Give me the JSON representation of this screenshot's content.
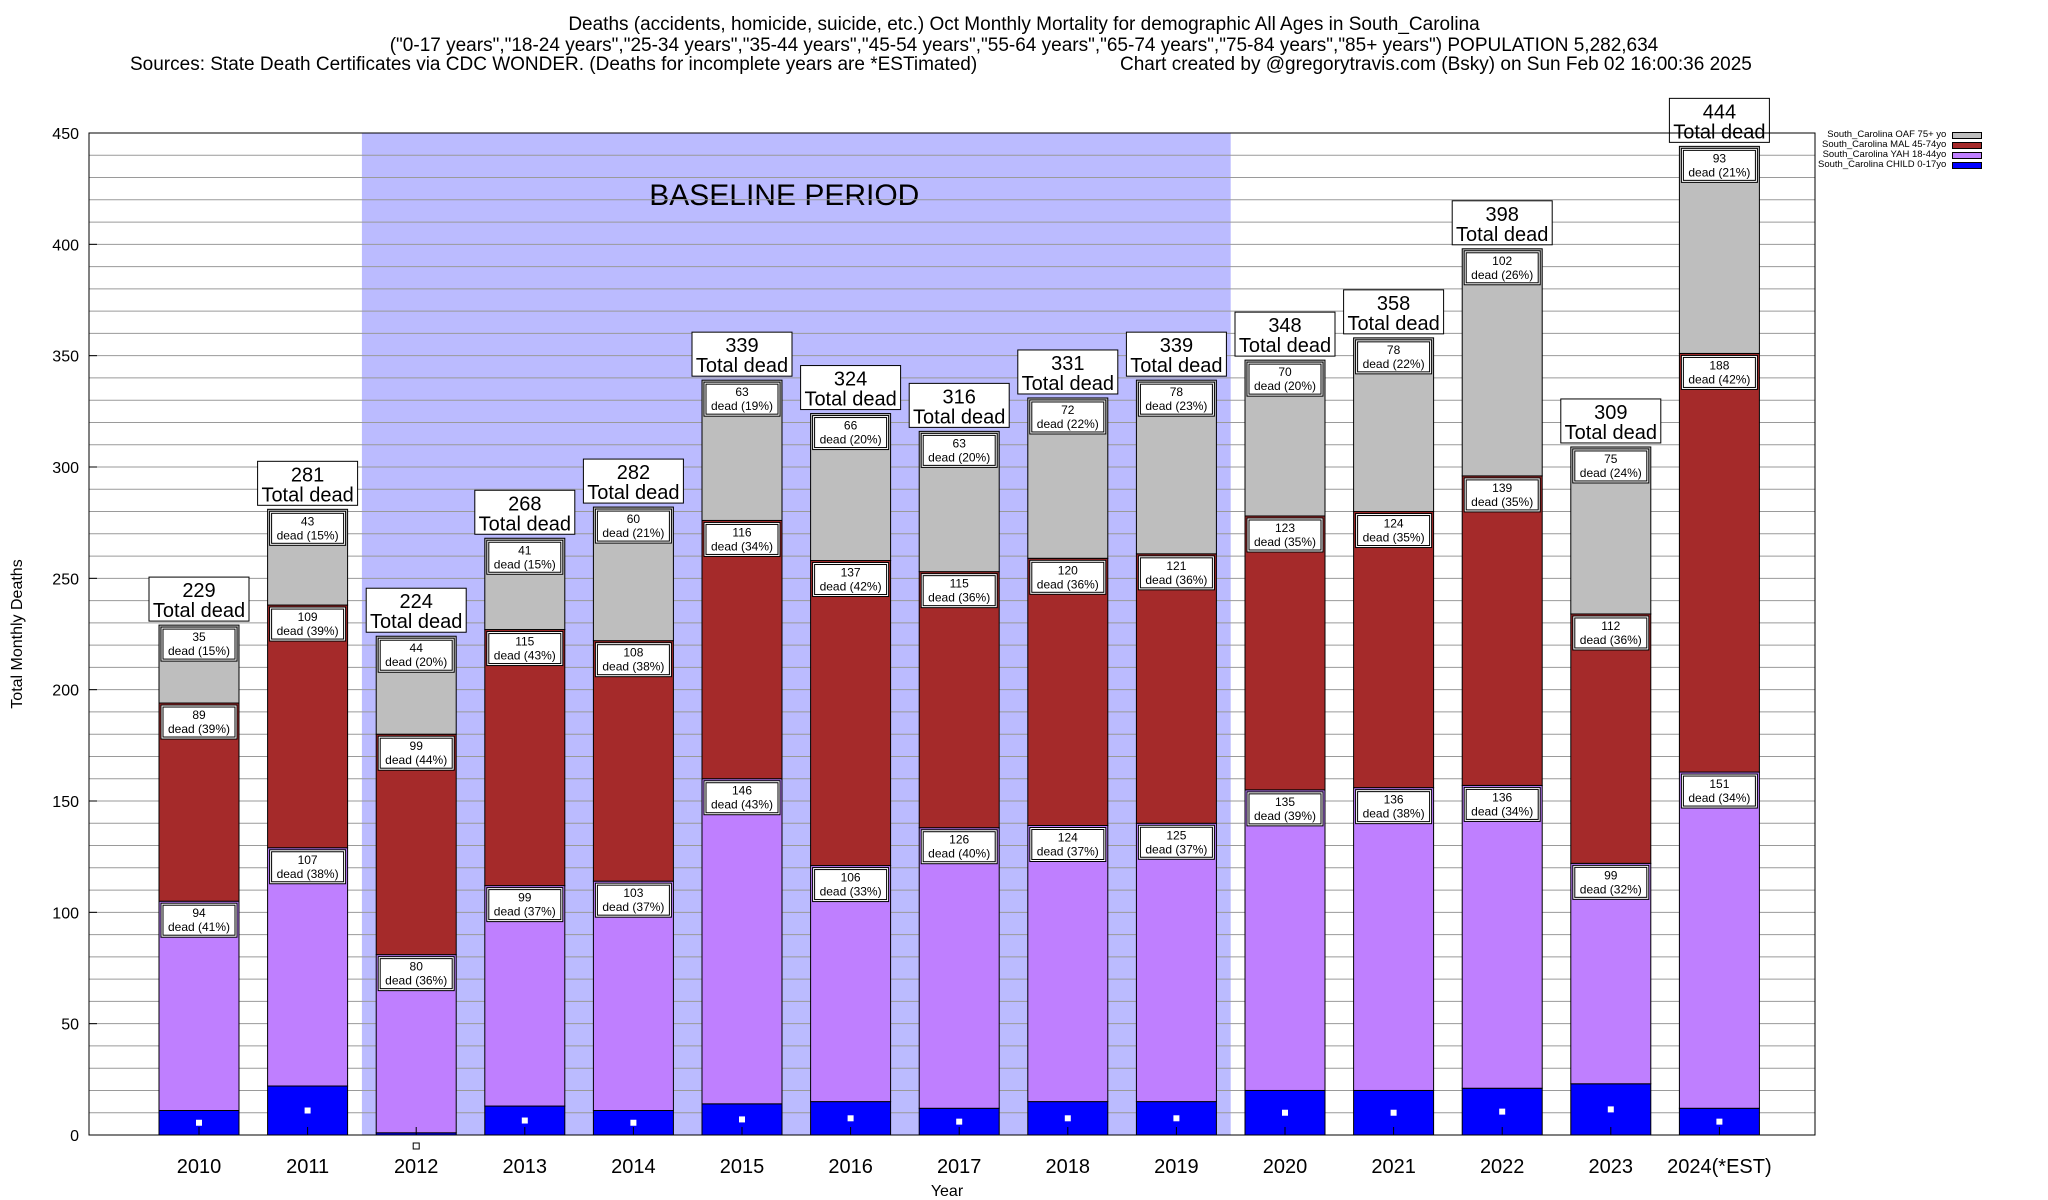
{
  "header": {
    "title_line1": "Deaths (accidents, homicide, suicide, etc.) Oct Monthly Mortality for demographic All Ages in South_Carolina",
    "title_line2": "(\"0-17 years\",\"18-24 years\",\"25-34 years\",\"35-44 years\",\"45-54 years\",\"55-64 years\",\"65-74 years\",\"75-84 years\",\"85+ years\") POPULATION 5,282,634",
    "sources": "Sources: State Death Certificates via CDC WONDER. (Deaths for incomplete years are *ESTimated)",
    "credit": "Chart created by @gregorytravis.com (Bsky) on Sun Feb 02 16:00:36 2025"
  },
  "chart_data": {
    "type": "bar",
    "stacked": true,
    "title": "Deaths (accidents, homicide, suicide, etc.) Oct Monthly Mortality for demographic All Ages in South_Carolina",
    "xlabel": "Year",
    "ylabel": "Total Monthly Deaths",
    "ylim": [
      0,
      450
    ],
    "yticks": [
      0,
      50,
      100,
      150,
      200,
      250,
      300,
      350,
      400,
      450
    ],
    "grid": true,
    "legend_position": "top-right",
    "categories": [
      "2010",
      "2011",
      "2012",
      "2013",
      "2014",
      "2015",
      "2016",
      "2017",
      "2018",
      "2019",
      "2020",
      "2021",
      "2022",
      "2023",
      "2024(*EST)"
    ],
    "series": [
      {
        "name": "South_Carolina CHILD 0-17yo",
        "color": "#0000ff",
        "values": [
          11,
          22,
          1,
          13,
          11,
          14,
          15,
          12,
          15,
          15,
          20,
          20,
          21,
          23,
          12
        ]
      },
      {
        "name": "South_Carolina YAH 18-44yo",
        "color": "#bf7fff",
        "values": [
          94,
          107,
          80,
          99,
          103,
          146,
          106,
          126,
          124,
          125,
          135,
          136,
          136,
          99,
          151
        ],
        "labels": [
          "94\ndead (41%)",
          "107\ndead (38%)",
          "80\ndead (36%)",
          "99\ndead (37%)",
          "103\ndead (37%)",
          "146\ndead (43%)",
          "106\ndead (33%)",
          "126\ndead (40%)",
          "124\ndead (37%)",
          "125\ndead (37%)",
          "135\ndead (39%)",
          "136\ndead (38%)",
          "136\ndead (34%)",
          "99\ndead (32%)",
          "151\ndead (34%)"
        ]
      },
      {
        "name": "South_Carolina MAL 45-74yo",
        "color": "#a52a2a",
        "values": [
          89,
          109,
          99,
          115,
          108,
          116,
          137,
          115,
          120,
          121,
          123,
          124,
          139,
          112,
          188
        ],
        "labels": [
          "89\ndead (39%)",
          "109\ndead (39%)",
          "99\ndead (44%)",
          "115\ndead (43%)",
          "108\ndead (38%)",
          "116\ndead (34%)",
          "137\ndead (42%)",
          "115\ndead (36%)",
          "120\ndead (36%)",
          "121\ndead (36%)",
          "123\ndead (35%)",
          "124\ndead (35%)",
          "139\ndead (35%)",
          "112\ndead (36%)",
          "188\ndead (42%)"
        ]
      },
      {
        "name": "South_Carolina OAF 75+ yo",
        "color": "#bebebe",
        "values": [
          35,
          43,
          44,
          41,
          60,
          63,
          66,
          63,
          72,
          78,
          70,
          78,
          102,
          75,
          93
        ],
        "labels": [
          "35\ndead (15%)",
          "43\ndead (15%)",
          "44\ndead (20%)",
          "41\ndead (15%)",
          "60\ndead (21%)",
          "63\ndead (19%)",
          "66\ndead (20%)",
          "63\ndead (20%)",
          "72\ndead (22%)",
          "78\ndead (23%)",
          "70\ndead (20%)",
          "78\ndead (22%)",
          "102\ndead (26%)",
          "75\ndead (24%)",
          "93\ndead (21%)"
        ]
      }
    ],
    "totals": [
      229,
      281,
      224,
      268,
      282,
      339,
      324,
      316,
      331,
      339,
      348,
      358,
      398,
      309,
      444
    ],
    "total_label": "Total dead",
    "baseline": {
      "label": "BASELINE PERIOD",
      "from": "2012",
      "to": "2019",
      "color": "#bbbbff"
    }
  }
}
